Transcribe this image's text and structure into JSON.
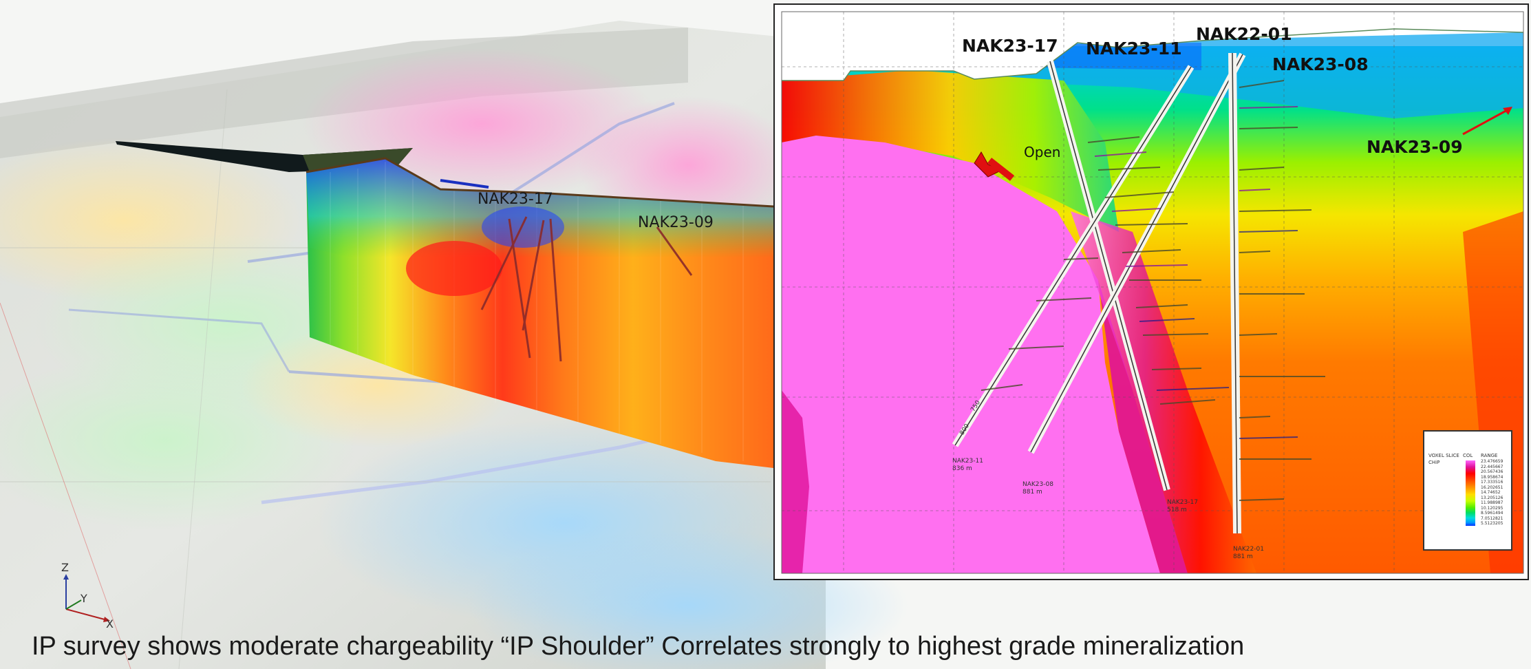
{
  "scene": {
    "labels": [
      "NAK23-17",
      "NAK23-09"
    ],
    "axes": {
      "z": "Z",
      "y": "Y",
      "x": "X"
    }
  },
  "section": {
    "holes": [
      "NAK23-17",
      "NAK23-11",
      "NAK22-01",
      "NAK23-08",
      "NAK23-09"
    ],
    "open_label": "Open",
    "collar_notes": [
      {
        "name": "NAK23-11",
        "depth": "836 m"
      },
      {
        "name": "NAK23-08",
        "depth": "881 m"
      },
      {
        "name": "NAK23-17",
        "depth": "518 m"
      },
      {
        "name": "NAK22-01",
        "depth": "881 m"
      }
    ],
    "depth_ticks": [
      "750",
      "800"
    ],
    "legend": {
      "heading_left": "VOXEL SLICE",
      "heading_sub": "CHiP",
      "col_header": "COL",
      "range_header": "RANGE",
      "colors": [
        "#ff66ff",
        "#e0129a",
        "#ff0000",
        "#ff5500",
        "#ff9900",
        "#ffdd00",
        "#c8ff00",
        "#55ee00",
        "#00dd66",
        "#00dddd",
        "#0099ff",
        "#0033ff"
      ],
      "values": [
        "23.476659",
        "22.445667",
        "20.567436",
        "18.958674",
        "17.333516",
        "16.202651",
        "14.74652",
        "13.205126",
        "11.988987",
        "10.120295",
        "8.5961494",
        "7.0512821",
        "5.5123205"
      ]
    }
  },
  "caption": "IP survey shows moderate chargeability “IP Shoulder”  Correlates strongly to highest grade mineralization"
}
